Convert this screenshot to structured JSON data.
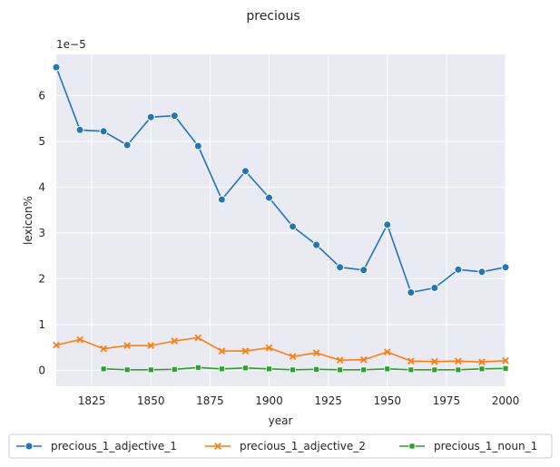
{
  "chart_data": {
    "type": "line",
    "title": "precious",
    "xlabel": "year",
    "ylabel": "lexicon%",
    "y_offset_label": "1e−5",
    "xlim": [
      1810,
      2000
    ],
    "ylim": [
      -0.35,
      6.9
    ],
    "x_ticks": [
      1825,
      1850,
      1875,
      1900,
      1925,
      1950,
      1975,
      2000
    ],
    "x_tick_labels": [
      "1825",
      "1850",
      "1875",
      "1900",
      "1925",
      "1950",
      "1975",
      "2000"
    ],
    "y_ticks": [
      0,
      1,
      2,
      3,
      4,
      5,
      6
    ],
    "y_tick_labels": [
      "0",
      "1",
      "2",
      "3",
      "4",
      "5",
      "6"
    ],
    "grid": true,
    "legend_position": "bottom-center",
    "series": [
      {
        "name": "precious_1_adjective_1",
        "color": "#1f77b4",
        "marker": "circle",
        "x": [
          1810,
          1820,
          1830,
          1840,
          1850,
          1860,
          1870,
          1880,
          1890,
          1900,
          1910,
          1920,
          1930,
          1940,
          1950,
          1960,
          1970,
          1980,
          1990,
          2000
        ],
        "y": [
          6.62,
          5.25,
          5.22,
          4.92,
          5.53,
          5.56,
          4.9,
          3.73,
          4.35,
          3.77,
          3.14,
          2.74,
          2.25,
          2.19,
          3.18,
          1.7,
          1.8,
          2.2,
          2.15,
          2.25
        ]
      },
      {
        "name": "precious_1_adjective_2",
        "color": "#ff7f0e",
        "marker": "x",
        "x": [
          1810,
          1820,
          1830,
          1840,
          1850,
          1860,
          1870,
          1880,
          1890,
          1900,
          1910,
          1920,
          1930,
          1940,
          1950,
          1960,
          1970,
          1980,
          1990,
          2000
        ],
        "y": [
          0.55,
          0.67,
          0.47,
          0.54,
          0.54,
          0.64,
          0.71,
          0.42,
          0.42,
          0.49,
          0.3,
          0.38,
          0.22,
          0.23,
          0.4,
          0.2,
          0.19,
          0.2,
          0.18,
          0.21
        ]
      },
      {
        "name": "precious_1_noun_1",
        "color": "#2ca02c",
        "marker": "square",
        "x": [
          1830,
          1840,
          1850,
          1860,
          1870,
          1880,
          1890,
          1900,
          1910,
          1920,
          1930,
          1940,
          1950,
          1960,
          1970,
          1980,
          1990,
          2000
        ],
        "y": [
          0.03,
          0.01,
          0.01,
          0.02,
          0.06,
          0.03,
          0.05,
          0.03,
          0.01,
          0.02,
          0.01,
          0.01,
          0.03,
          0.01,
          0.01,
          0.01,
          0.03,
          0.04
        ]
      }
    ]
  }
}
